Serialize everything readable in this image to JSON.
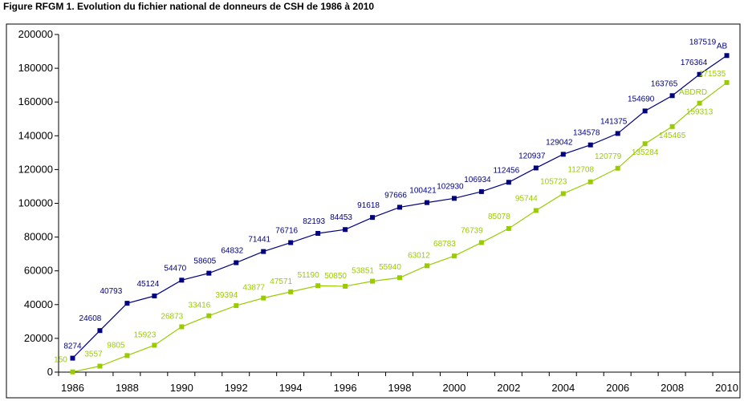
{
  "chart_data": {
    "type": "line",
    "title": "Figure RFGM 1. Evolution du fichier national de donneurs de CSH de 1986 à 2010",
    "xlabel": "",
    "ylabel": "",
    "x": [
      1986,
      1987,
      1988,
      1989,
      1990,
      1991,
      1992,
      1993,
      1994,
      1995,
      1996,
      1997,
      1998,
      1999,
      2000,
      2001,
      2002,
      2003,
      2004,
      2005,
      2006,
      2007,
      2008,
      2009,
      2010
    ],
    "x_tick_labels": [
      "1986",
      "1988",
      "1990",
      "1992",
      "1994",
      "1996",
      "1998",
      "2000",
      "2002",
      "2004",
      "2006",
      "2008",
      "2010"
    ],
    "ylim": [
      0,
      200000
    ],
    "y_tick_labels": [
      "0",
      "20000",
      "40000",
      "60000",
      "80000",
      "100000",
      "120000",
      "140000",
      "160000",
      "180000",
      "200000"
    ],
    "grid": false,
    "series": [
      {
        "name": "AB",
        "color": "#000080",
        "values": [
          8274,
          24608,
          40793,
          45124,
          54470,
          58605,
          64832,
          71441,
          76716,
          82193,
          84453,
          91618,
          97666,
          100421,
          102930,
          106934,
          112456,
          120937,
          129042,
          134578,
          141375,
          154690,
          163765,
          176364,
          187519
        ]
      },
      {
        "name": "ABDRD",
        "color": "#99cc00",
        "values": [
          150,
          3557,
          9805,
          15923,
          26873,
          33416,
          39394,
          43877,
          47571,
          51190,
          50850,
          53851,
          55940,
          63012,
          68783,
          76739,
          85078,
          95744,
          105723,
          112708,
          120779,
          135284,
          145465,
          159313,
          171535
        ]
      }
    ]
  }
}
